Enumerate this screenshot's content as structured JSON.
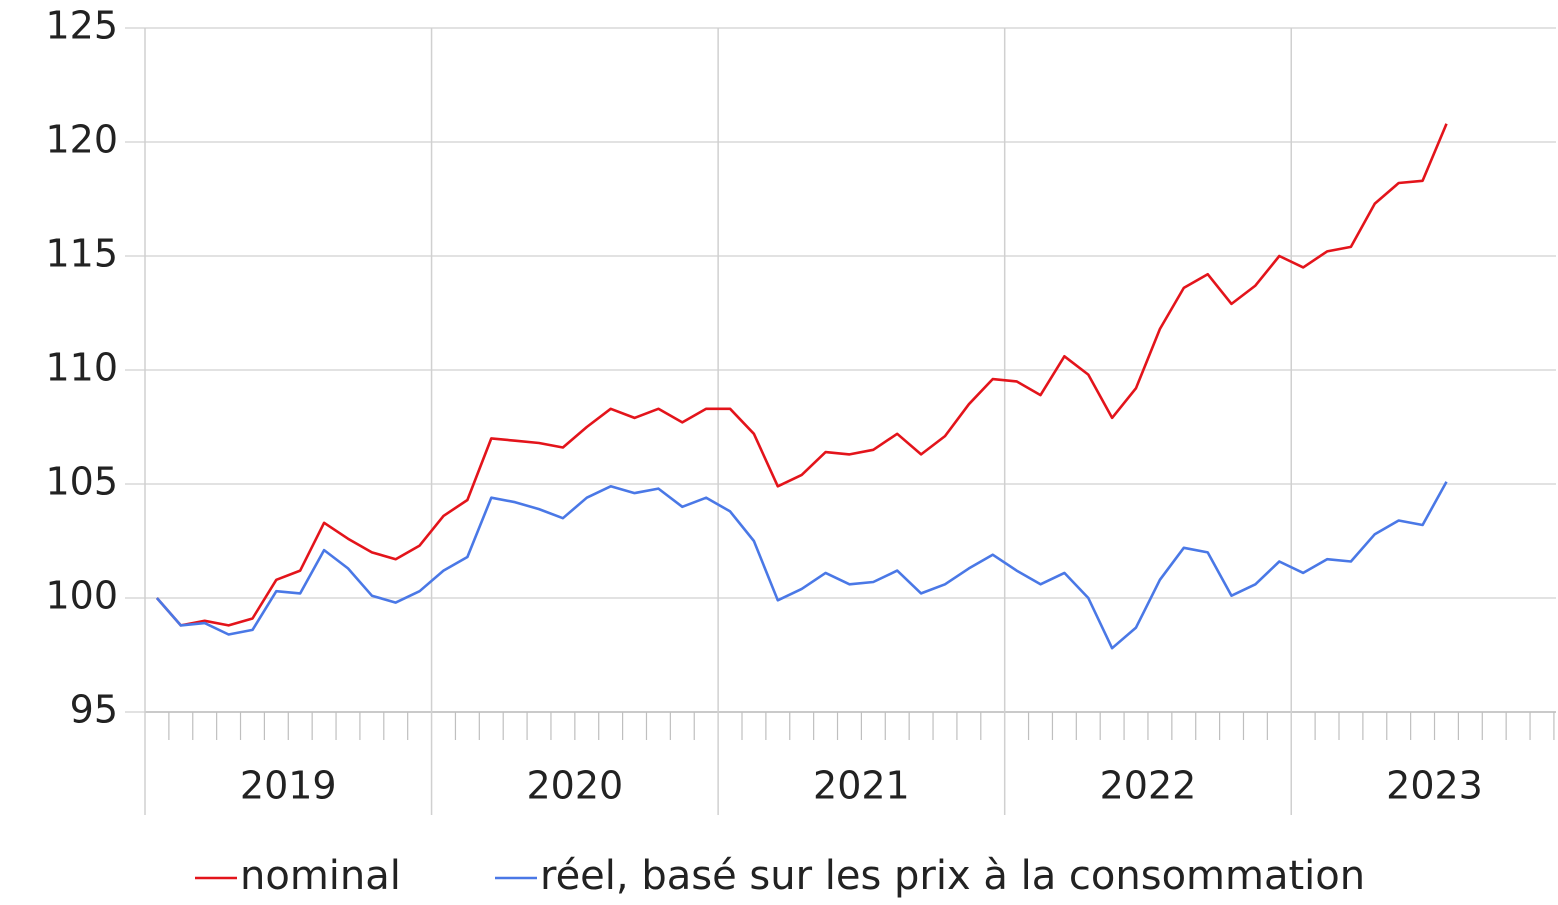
{
  "chart_data": {
    "type": "line",
    "x_labels": [
      "2019",
      "2020",
      "2021",
      "2022",
      "2023"
    ],
    "ylim": [
      95,
      125
    ],
    "yticks": [
      95,
      100,
      105,
      110,
      115,
      120,
      125
    ],
    "grid": true,
    "series": [
      {
        "name": "nominal",
        "color": "#e3141b",
        "values": [
          100,
          98.8,
          99.0,
          98.8,
          99.1,
          100.8,
          101.2,
          103.3,
          102.6,
          102.0,
          101.7,
          102.3,
          103.6,
          104.3,
          107.0,
          106.9,
          106.8,
          106.6,
          107.5,
          108.3,
          107.9,
          108.3,
          107.7,
          108.3,
          108.3,
          107.2,
          104.9,
          105.4,
          106.4,
          106.3,
          106.5,
          107.2,
          106.3,
          107.1,
          108.5,
          109.6,
          109.5,
          108.9,
          110.6,
          109.8,
          107.9,
          109.2,
          111.8,
          113.6,
          114.2,
          112.9,
          113.7,
          115.0,
          114.5,
          115.2,
          115.4,
          117.3,
          118.2,
          118.3,
          120.8
        ]
      },
      {
        "name": "réel, basé sur les prix à la consommation",
        "color": "#4a78e6",
        "values": [
          100,
          98.8,
          98.9,
          98.4,
          98.6,
          100.3,
          100.2,
          102.1,
          101.3,
          100.1,
          99.8,
          100.3,
          101.2,
          101.8,
          104.4,
          104.2,
          103.9,
          103.5,
          104.4,
          104.9,
          104.6,
          104.8,
          104.0,
          104.4,
          103.8,
          102.5,
          99.9,
          100.4,
          101.1,
          100.6,
          100.7,
          101.2,
          100.2,
          100.6,
          101.3,
          101.9,
          101.2,
          100.6,
          101.1,
          100.0,
          97.8,
          98.7,
          100.8,
          102.2,
          102.0,
          100.1,
          100.6,
          101.6,
          101.1,
          101.7,
          101.6,
          102.8,
          103.4,
          103.2,
          105.1
        ]
      }
    ]
  }
}
